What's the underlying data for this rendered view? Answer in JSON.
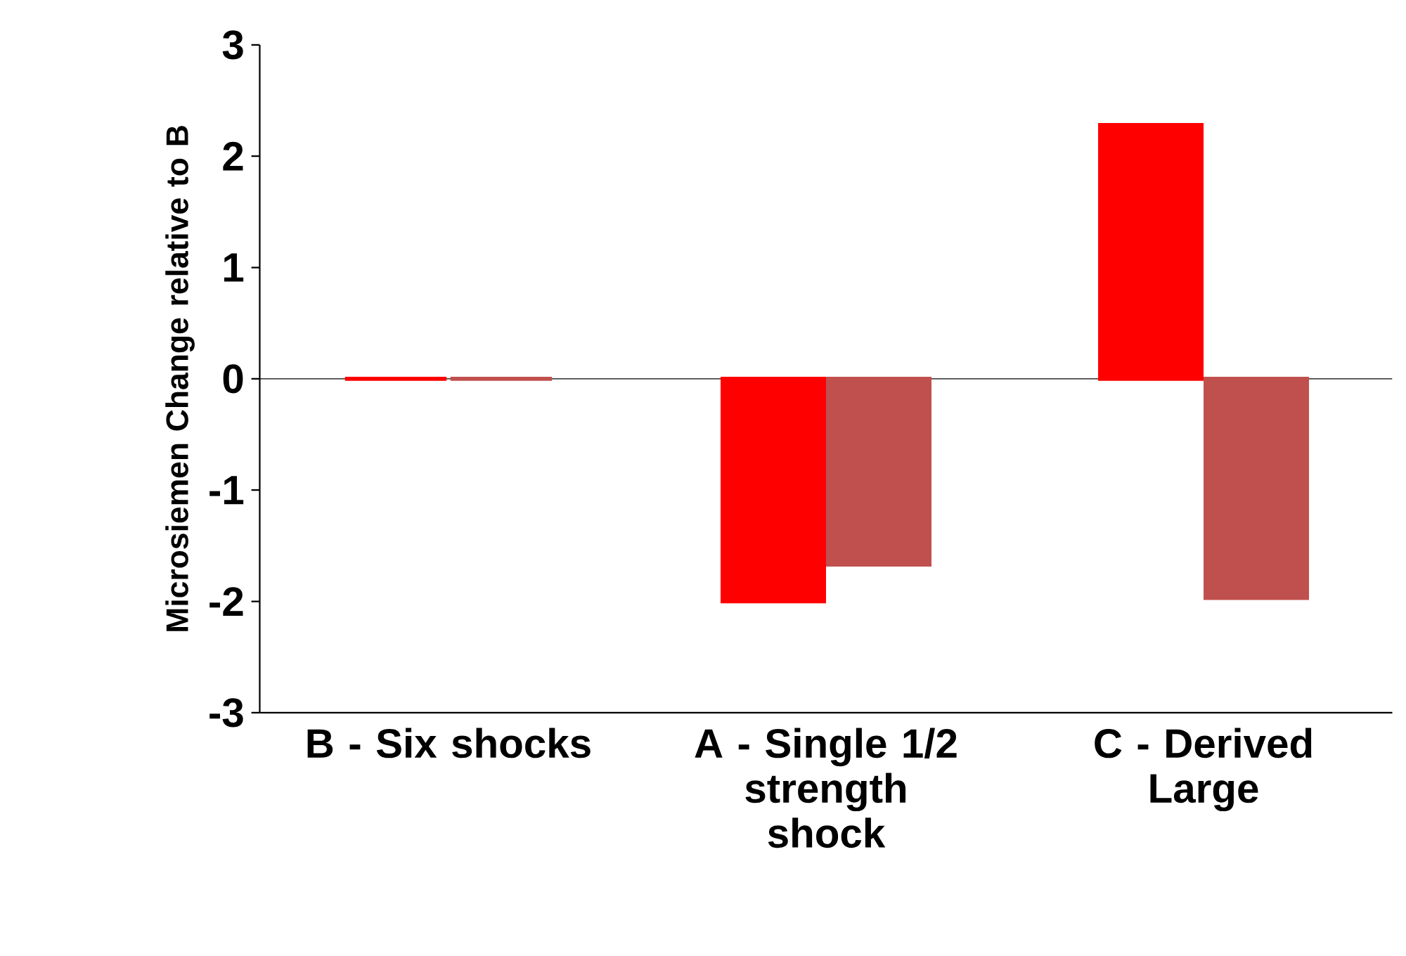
{
  "chart_data": {
    "type": "bar",
    "ylabel": "Microsiemen Change relative to B",
    "categories": [
      "B - Six shocks",
      "A - Single 1/2 strength shock",
      "C - Derived Large"
    ],
    "series": [
      {
        "color": "#ff0000",
        "values": [
          0,
          -2.0,
          2.28
        ]
      },
      {
        "color": "#c0504d",
        "values": [
          0,
          -1.67,
          -1.97
        ]
      }
    ],
    "ylim": [
      -3,
      3
    ],
    "yticks": [
      -3,
      -2,
      -1,
      0,
      1,
      2,
      3
    ],
    "ref_lines": [
      {
        "axis": "y",
        "value": 0
      }
    ]
  }
}
